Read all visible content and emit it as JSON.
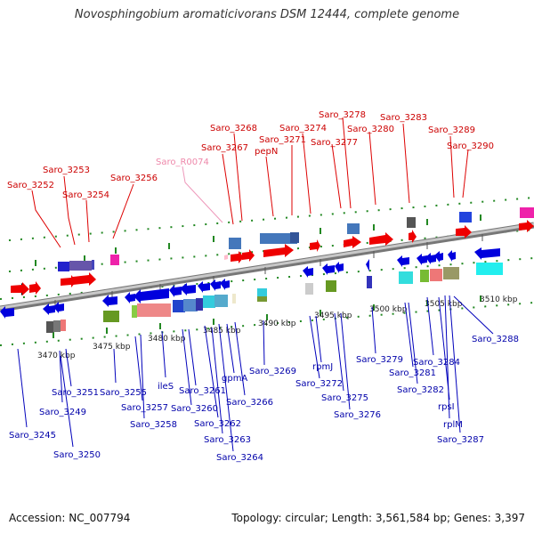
{
  "title": "Novosphingobium aromaticivorans DSM 12444, complete genome",
  "accession": "Accession: NC_007794",
  "summary": "Topology: circular; Length: 3,561,584 bp; Genes: 3,397",
  "colors": {
    "forward_label": "#cc0000",
    "reverse_label": "#0000aa",
    "rna_label": "#ee88aa",
    "backbone": "#9a9a9a",
    "tick": "#228822"
  },
  "scale_labels": [
    "3470 kbp",
    "3475 kbp",
    "3480 kbp",
    "3485 kbp",
    "3490 kbp",
    "3495 kbp",
    "3500 kbp",
    "3505 kbp",
    "3510 kbp"
  ],
  "upper_labels": [
    "Saro_3252",
    "Saro_3253",
    "Saro_3254",
    "Saro_3256",
    "Saro_R0074",
    "Saro_3267",
    "Saro_3268",
    "pepN",
    "Saro_3271",
    "Saro_3274",
    "Saro_3277",
    "Saro_3278",
    "Saro_3280",
    "Saro_3283",
    "Saro_3289",
    "Saro_3290"
  ],
  "lower_labels": [
    "Saro_3245",
    "Saro_3249",
    "Saro_3250",
    "Saro_3251",
    "Saro_3255",
    "Saro_3257",
    "Saro_3258",
    "ileS",
    "Saro_3260",
    "Saro_3261",
    "Saro_3262",
    "Saro_3263",
    "Saro_3264",
    "gpmA",
    "Saro_3266",
    "Saro_3269",
    "rpmJ",
    "Saro_3272",
    "Saro_3275",
    "Saro_3276",
    "Saro_3279",
    "Saro_3281",
    "Saro_3282",
    "Saro_3284",
    "rpsI",
    "rplM",
    "Saro_3287",
    "Saro_3288"
  ]
}
